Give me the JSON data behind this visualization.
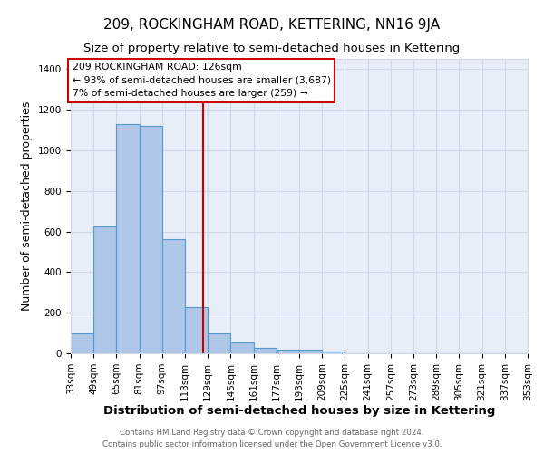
{
  "title": "209, ROCKINGHAM ROAD, KETTERING, NN16 9JA",
  "subtitle": "Size of property relative to semi-detached houses in Kettering",
  "xlabel": "Distribution of semi-detached houses by size in Kettering",
  "ylabel": "Number of semi-detached properties",
  "bin_edges": [
    33,
    49,
    65,
    81,
    97,
    113,
    129,
    145,
    161,
    177,
    193,
    209,
    225,
    241,
    257,
    273,
    289,
    305,
    321,
    337,
    353
  ],
  "bar_heights": [
    98,
    625,
    1128,
    1120,
    560,
    228,
    100,
    52,
    25,
    20,
    18,
    10,
    0,
    0,
    0,
    0,
    0,
    0,
    0,
    0
  ],
  "bar_color": "#aec6e8",
  "bar_edgecolor": "#5599cc",
  "bar_linewidth": 0.8,
  "vline_x": 126,
  "vline_color": "#cc0000",
  "annotation_title": "209 ROCKINGHAM ROAD: 126sqm",
  "annotation_line1": "← 93% of semi-detached houses are smaller (3,687)",
  "annotation_line2": "7% of semi-detached houses are larger (259) →",
  "annotation_box_color": "#ffffff",
  "annotation_box_edgecolor": "#cc0000",
  "ylim": [
    0,
    1450
  ],
  "yticks": [
    0,
    200,
    400,
    600,
    800,
    1000,
    1200,
    1400
  ],
  "grid_color": "#d0d8e8",
  "background_color": "#e8eef8",
  "footer_line1": "Contains HM Land Registry data © Crown copyright and database right 2024.",
  "footer_line2": "Contains public sector information licensed under the Open Government Licence v3.0.",
  "title_fontsize": 11,
  "subtitle_fontsize": 9.5,
  "tick_label_fontsize": 7.5,
  "ylabel_fontsize": 9,
  "xlabel_fontsize": 9.5
}
